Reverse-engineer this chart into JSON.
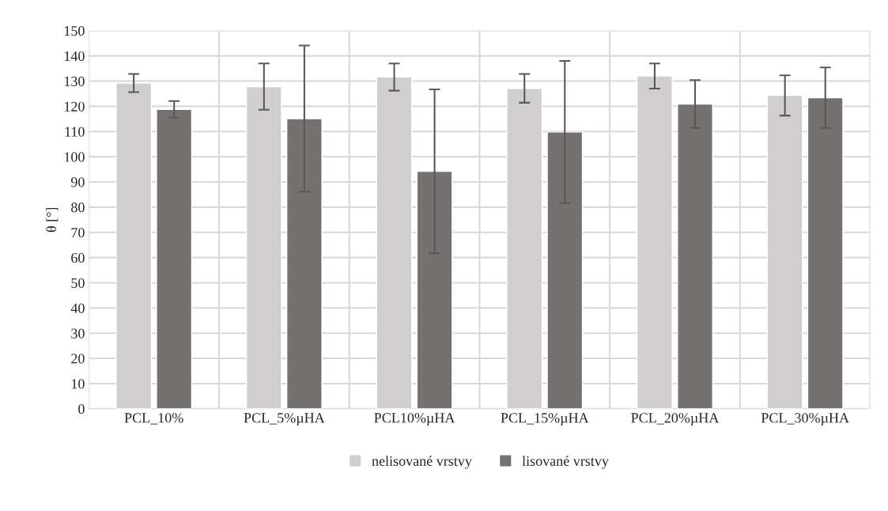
{
  "chart_data": {
    "type": "bar",
    "ylabel": "θ [°]",
    "categories": [
      "PCL_10%",
      "PCL_5%µHA",
      "PCL10%µHA",
      "PCL_15%µHA",
      "PCL_20%µHA",
      "PCL_30%µHA"
    ],
    "series": [
      {
        "name": "nelisované vrstvy",
        "color": "#d0cece",
        "values": [
          129.2,
          127.8,
          131.6,
          127.1,
          132.0,
          124.3
        ],
        "errors": [
          3.6,
          9.2,
          5.4,
          5.7,
          5,
          8
        ]
      },
      {
        "name": "lisované vrstvy",
        "color": "#767171",
        "values": [
          118.8,
          115.1,
          94.2,
          109.8,
          120.9,
          123.4
        ],
        "errors": [
          3.3,
          29,
          32.5,
          28.2,
          9.5,
          12
        ]
      }
    ],
    "ylim": [
      0,
      150
    ],
    "yticks": [
      0,
      10,
      20,
      30,
      40,
      50,
      60,
      70,
      80,
      90,
      100,
      110,
      120,
      130,
      140,
      150
    ],
    "grid": true,
    "legend": "bottom"
  }
}
